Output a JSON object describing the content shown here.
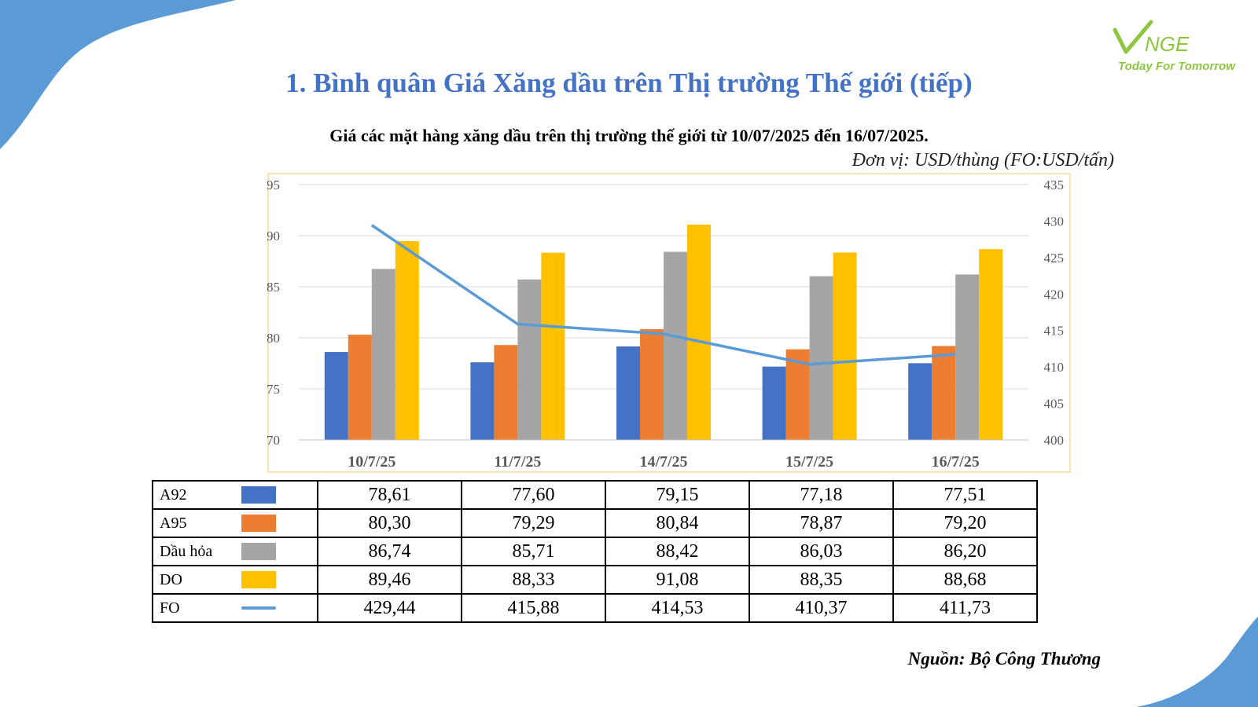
{
  "title": "1. Bình quân Giá Xăng dầu trên Thị trường Thế giới (tiếp)",
  "logo": {
    "mark": "VNGE",
    "tagline": "Today For Tomorrow"
  },
  "subtitle": "Giá các mặt hàng xăng dầu trên thị trường thế giới từ 10/07/2025 đến 16/07/2025.",
  "unit": "Đơn vị: USD/thùng (FO:USD/tấn)",
  "source": "Nguồn: Bộ Công Thương",
  "colors": {
    "title": "#4472c4",
    "frame": "#f6e3b4",
    "decoration": "#5b9bd5",
    "logo": "#8dc63f"
  },
  "chart_data": {
    "type": "bar",
    "categories": [
      "10/7/25",
      "11/7/25",
      "14/7/25",
      "15/7/25",
      "16/7/25"
    ],
    "series": [
      {
        "name": "A92",
        "type": "bar",
        "axis": "left",
        "color": "#4472c4",
        "values": [
          78.61,
          77.6,
          79.15,
          77.18,
          77.51
        ]
      },
      {
        "name": "A95",
        "type": "bar",
        "axis": "left",
        "color": "#ed7d31",
        "values": [
          80.3,
          79.29,
          80.84,
          78.87,
          79.2
        ]
      },
      {
        "name": "Dầu hỏa",
        "type": "bar",
        "axis": "left",
        "color": "#a5a5a5",
        "values": [
          86.74,
          85.71,
          88.42,
          86.03,
          86.2
        ]
      },
      {
        "name": "DO",
        "type": "bar",
        "axis": "left",
        "color": "#ffc000",
        "values": [
          89.46,
          88.33,
          91.08,
          88.35,
          88.68
        ]
      },
      {
        "name": "FO",
        "type": "line",
        "axis": "right",
        "color": "#5b9bd5",
        "values": [
          429.44,
          415.88,
          414.53,
          410.37,
          411.73
        ]
      }
    ],
    "ylim": [
      70,
      95
    ],
    "yticks": [
      95,
      90,
      85,
      80,
      75,
      70
    ],
    "y2lim": [
      400,
      435
    ],
    "y2ticks": [
      435,
      430,
      425,
      420,
      415,
      410,
      405,
      400
    ],
    "grid": true,
    "legend": "data-table-below"
  },
  "table": {
    "rows": [
      {
        "label": "A92",
        "swatch": "bar",
        "color": "#4472c4",
        "values": [
          "78,61",
          "77,60",
          "79,15",
          "77,18",
          "77,51"
        ]
      },
      {
        "label": "A95",
        "swatch": "bar",
        "color": "#ed7d31",
        "values": [
          "80,30",
          "79,29",
          "80,84",
          "78,87",
          "79,20"
        ]
      },
      {
        "label": "Dầu hỏa",
        "swatch": "bar",
        "color": "#a5a5a5",
        "values": [
          "86,74",
          "85,71",
          "88,42",
          "86,03",
          "86,20"
        ]
      },
      {
        "label": "DO",
        "swatch": "bar",
        "color": "#ffc000",
        "values": [
          "89,46",
          "88,33",
          "91,08",
          "88,35",
          "88,68"
        ]
      },
      {
        "label": "FO",
        "swatch": "line",
        "color": "#5b9bd5",
        "values": [
          "429,44",
          "415,88",
          "414,53",
          "410,37",
          "411,73"
        ]
      }
    ]
  }
}
